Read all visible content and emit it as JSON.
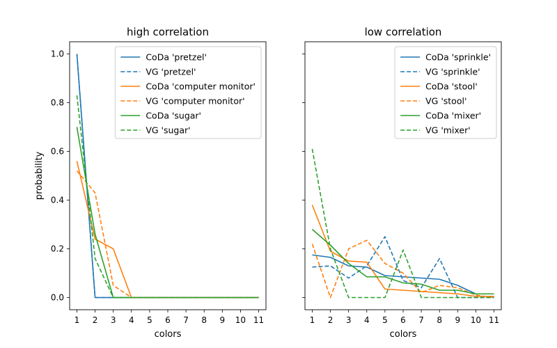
{
  "chart_data": [
    {
      "type": "line",
      "title": "high correlation",
      "xlabel": "colors",
      "ylabel": "probability",
      "xlim": [
        0.6,
        11.4
      ],
      "ylim": [
        -0.05,
        1.05
      ],
      "x": [
        1,
        2,
        3,
        4,
        5,
        6,
        7,
        8,
        9,
        10,
        11
      ],
      "xticks": [
        "1",
        "2",
        "3",
        "4",
        "5",
        "6",
        "7",
        "8",
        "9",
        "10",
        "11"
      ],
      "yticks": [
        "0.0",
        "0.2",
        "0.4",
        "0.6",
        "0.8",
        "1.0"
      ],
      "ytick_values": [
        0,
        0.2,
        0.4,
        0.6,
        0.8,
        1.0
      ],
      "grid": false,
      "legend": "upper-right",
      "series": [
        {
          "name": "CoDa 'pretzel'",
          "color": "#1f77b4",
          "style": "solid",
          "values": [
            1.0,
            0.0,
            0.0,
            0.0,
            0.0,
            0.0,
            0.0,
            0.0,
            0.0,
            0.0,
            0.0
          ]
        },
        {
          "name": "VG 'pretzel'",
          "color": "#1f77b4",
          "style": "dashed",
          "values": [
            1.0,
            0.0,
            0.0,
            0.0,
            0.0,
            0.0,
            0.0,
            0.0,
            0.0,
            0.0,
            0.0
          ]
        },
        {
          "name": "CoDa 'computer monitor'",
          "color": "#ff7f0e",
          "style": "solid",
          "values": [
            0.56,
            0.24,
            0.2,
            0.0,
            0.0,
            0.0,
            0.0,
            0.0,
            0.0,
            0.0,
            0.0
          ]
        },
        {
          "name": "VG 'computer monitor'",
          "color": "#ff7f0e",
          "style": "dashed",
          "values": [
            0.52,
            0.43,
            0.05,
            0.0,
            0.0,
            0.0,
            0.0,
            0.0,
            0.0,
            0.0,
            0.0
          ]
        },
        {
          "name": "CoDa 'sugar'",
          "color": "#2ca02c",
          "style": "solid",
          "values": [
            0.7,
            0.26,
            0.0,
            0.0,
            0.0,
            0.0,
            0.0,
            0.0,
            0.0,
            0.0,
            0.0
          ]
        },
        {
          "name": "VG 'sugar'",
          "color": "#2ca02c",
          "style": "dashed",
          "values": [
            0.83,
            0.16,
            0.0,
            0.0,
            0.0,
            0.0,
            0.0,
            0.0,
            0.0,
            0.0,
            0.0
          ]
        }
      ]
    },
    {
      "type": "line",
      "title": "low correlation",
      "xlabel": "colors",
      "ylabel": "",
      "xlim": [
        0.6,
        11.4
      ],
      "ylim": [
        -0.05,
        1.05
      ],
      "x": [
        1,
        2,
        3,
        4,
        5,
        6,
        7,
        8,
        9,
        10,
        11
      ],
      "xticks": [
        "1",
        "2",
        "3",
        "4",
        "5",
        "6",
        "7",
        "8",
        "9",
        "10",
        "11"
      ],
      "yticks": [],
      "ytick_values": [
        0,
        0.2,
        0.4,
        0.6,
        0.8,
        1.0
      ],
      "grid": false,
      "legend": "upper-right",
      "series": [
        {
          "name": "CoDa 'sprinkle'",
          "color": "#1f77b4",
          "style": "solid",
          "values": [
            0.175,
            0.165,
            0.13,
            0.125,
            0.09,
            0.085,
            0.08,
            0.075,
            0.05,
            0.015,
            0.015
          ]
        },
        {
          "name": "VG 'sprinkle'",
          "color": "#1f77b4",
          "style": "dashed",
          "values": [
            0.125,
            0.13,
            0.08,
            0.13,
            0.25,
            0.07,
            0.04,
            0.16,
            0.0,
            0.0,
            0.0
          ]
        },
        {
          "name": "CoDa 'stool'",
          "color": "#ff7f0e",
          "style": "solid",
          "values": [
            0.38,
            0.19,
            0.15,
            0.145,
            0.035,
            0.03,
            0.025,
            0.02,
            0.015,
            0.005,
            0.005
          ]
        },
        {
          "name": "VG 'stool'",
          "color": "#ff7f0e",
          "style": "dashed",
          "values": [
            0.22,
            0.0,
            0.2,
            0.235,
            0.14,
            0.1,
            0.02,
            0.05,
            0.04,
            0.01,
            0.0
          ]
        },
        {
          "name": "CoDa 'mixer'",
          "color": "#2ca02c",
          "style": "solid",
          "values": [
            0.28,
            0.215,
            0.14,
            0.085,
            0.085,
            0.06,
            0.055,
            0.03,
            0.03,
            0.015,
            0.015
          ]
        },
        {
          "name": "VG 'mixer'",
          "color": "#2ca02c",
          "style": "dashed",
          "values": [
            0.61,
            0.2,
            0.0,
            0.0,
            0.0,
            0.195,
            0.0,
            0.0,
            0.0,
            0.0,
            0.0
          ]
        }
      ]
    }
  ]
}
